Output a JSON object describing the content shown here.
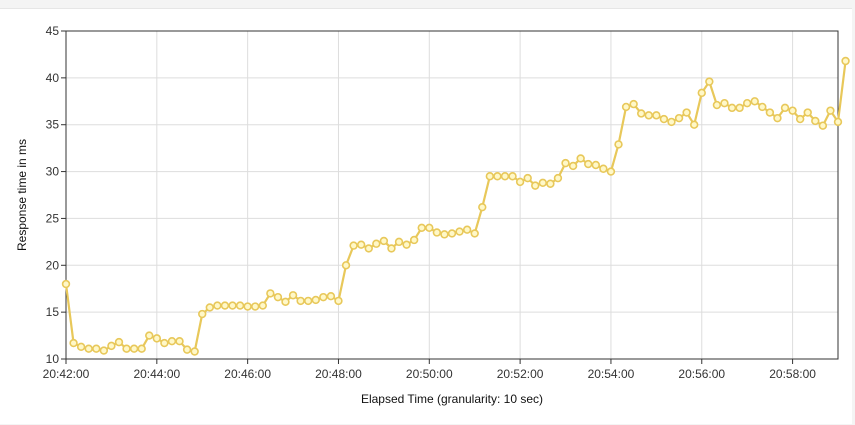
{
  "chart_data": {
    "type": "line",
    "xlabel": "Elapsed Time (granularity: 10 sec)",
    "ylabel": "Response time in ms",
    "ylim": [
      10,
      45
    ],
    "yticks": [
      10,
      15,
      20,
      25,
      30,
      35,
      40,
      45
    ],
    "xlim": [
      "20:42:00",
      "20:59:00"
    ],
    "xticks": [
      "20:42:00",
      "20:44:00",
      "20:46:00",
      "20:48:00",
      "20:50:00",
      "20:52:00",
      "20:54:00",
      "20:56:00",
      "20:58:00"
    ],
    "granularity_sec": 10,
    "grid": true,
    "legend": "none",
    "line_color": "#e8c85a",
    "marker_fill": "#fff8c8",
    "series": [
      {
        "start": "20:42:00",
        "values": [
          18.0,
          11.7,
          11.3,
          11.1,
          11.1,
          10.9,
          11.4,
          11.8,
          11.1,
          11.1,
          11.1,
          12.5,
          12.2,
          11.7,
          11.9,
          11.9,
          11.0,
          10.8,
          14.8,
          15.5,
          15.7,
          15.7,
          15.7,
          15.7,
          15.6,
          15.6,
          15.7,
          17.0,
          16.6,
          16.1,
          16.8,
          16.2,
          16.2,
          16.3,
          16.6,
          16.7,
          16.2,
          20.0,
          22.1,
          22.2,
          21.8,
          22.3,
          22.6,
          21.8,
          22.5,
          22.2,
          22.7,
          24.0,
          24.0,
          23.5,
          23.3,
          23.4,
          23.6,
          23.8,
          23.4,
          26.2,
          29.5,
          29.5,
          29.5,
          29.5,
          28.9,
          29.3,
          28.5,
          28.8,
          28.7,
          29.3,
          30.9,
          30.6,
          31.4,
          30.8,
          30.7,
          30.3,
          30.0,
          32.9,
          36.9,
          37.2,
          36.2,
          36.0,
          36.0,
          35.6,
          35.3,
          35.7,
          36.3,
          35.0,
          38.4,
          39.6,
          37.1,
          37.3,
          36.8,
          36.8,
          37.3,
          37.5,
          36.9,
          36.3,
          35.7,
          36.8,
          36.5,
          35.6,
          36.3,
          35.4,
          34.9,
          36.5,
          35.3,
          41.8
        ]
      }
    ]
  }
}
